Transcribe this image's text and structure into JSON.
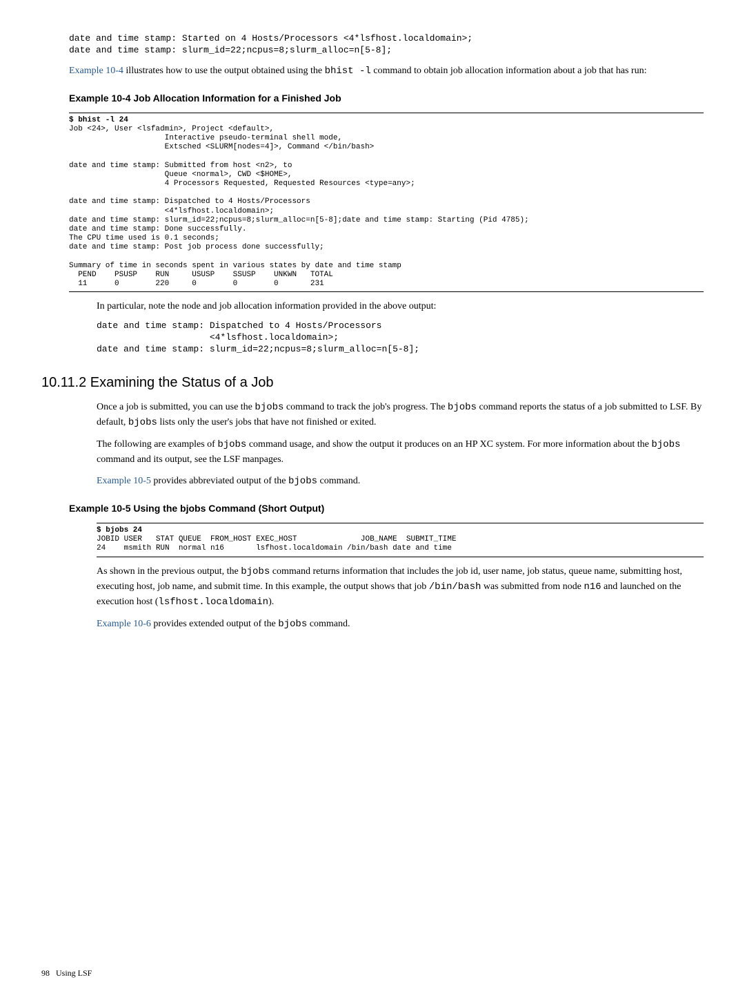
{
  "intro_code": "date and time stamp: Started on 4 Hosts/Processors <4*lsfhost.localdomain>;\ndate and time stamp: slurm_id=22;ncpus=8;slurm_alloc=n[5-8];",
  "intro_para_1": "Example 10-4",
  "intro_para_2": " illustrates how to use the output obtained using the ",
  "intro_para_code": "bhist -l",
  "intro_para_3": " command to obtain job allocation information about a job that has run:",
  "example_10_4_title": "Example 10-4 Job Allocation Information for a Finished Job",
  "example_10_4_cmd": "$ bhist -l 24",
  "example_10_4_body": "Job <24>, User <lsfadmin>, Project <default>,\n                     Interactive pseudo-terminal shell mode,\n                     Extsched <SLURM[nodes=4]>, Command </bin/bash>\n\ndate and time stamp: Submitted from host <n2>, to\n                     Queue <normal>, CWD <$HOME>,\n                     4 Processors Requested, Requested Resources <type=any>;\n\ndate and time stamp: Dispatched to 4 Hosts/Processors\n                     <4*lsfhost.localdomain>;\ndate and time stamp: slurm_id=22;ncpus=8;slurm_alloc=n[5-8];date and time stamp: Starting (Pid 4785);\ndate and time stamp: Done successfully.\nThe CPU time used is 0.1 seconds;\ndate and time stamp: Post job process done successfully;\n\nSummary of time in seconds spent in various states by date and time stamp\n  PEND    PSUSP    RUN     USUSP    SSUSP    UNKWN   TOTAL\n  11      0        220     0        0        0       231",
  "note_para": "In particular, note the node and job allocation information provided in the above output:",
  "note_code": "date and time stamp: Dispatched to 4 Hosts/Processors\n                     <4*lsfhost.localdomain>;\ndate and time stamp: slurm_id=22;ncpus=8;slurm_alloc=n[5-8];",
  "section_title": "10.11.2 Examining the Status of a Job",
  "sec_p1_a": "Once a job is submitted, you can use the ",
  "sec_p1_code1": "bjobs",
  "sec_p1_b": " command to track the job's progress. The ",
  "sec_p1_code2": "bjobs",
  "sec_p1_c": " command reports the status of a job submitted to LSF. By default, ",
  "sec_p1_code3": "bjobs",
  "sec_p1_d": " lists only the user's jobs that have not finished or exited.",
  "sec_p2_a": "The following are examples of ",
  "sec_p2_code1": "bjobs",
  "sec_p2_b": " command usage, and show the output it produces on an HP XC system. For more information about the ",
  "sec_p2_code2": "bjobs",
  "sec_p2_c": " command and its output, see the LSF manpages.",
  "sec_p3_link": "Example 10-5",
  "sec_p3_a": " provides abbreviated output of the ",
  "sec_p3_code": "bjobs",
  "sec_p3_b": " command.",
  "example_10_5_title": "Example 10-5 Using the bjobs Command (Short Output)",
  "example_10_5_cmd": "$ bjobs 24",
  "example_10_5_body": "JOBID USER   STAT QUEUE  FROM_HOST EXEC_HOST              JOB_NAME  SUBMIT_TIME\n24    msmith RUN  normal n16       lsfhost.localdomain /bin/bash date and time",
  "sec_p4_a": "As shown in the previous output, the ",
  "sec_p4_code1": "bjobs",
  "sec_p4_b": " command returns information that includes the job id, user name, job status, queue name, submitting host, executing host, job name, and submit time. In this example, the output shows that job ",
  "sec_p4_code2": "/bin/bash",
  "sec_p4_c": " was submitted from node ",
  "sec_p4_code3": "n16",
  "sec_p4_d": " and launched on the execution host (",
  "sec_p4_code4": "lsfhost.localdomain",
  "sec_p4_e": ").",
  "sec_p5_link": "Example 10-6",
  "sec_p5_a": " provides extended output of the ",
  "sec_p5_code": "bjobs",
  "sec_p5_b": " command.",
  "footer_page": "98",
  "footer_text": "Using LSF"
}
